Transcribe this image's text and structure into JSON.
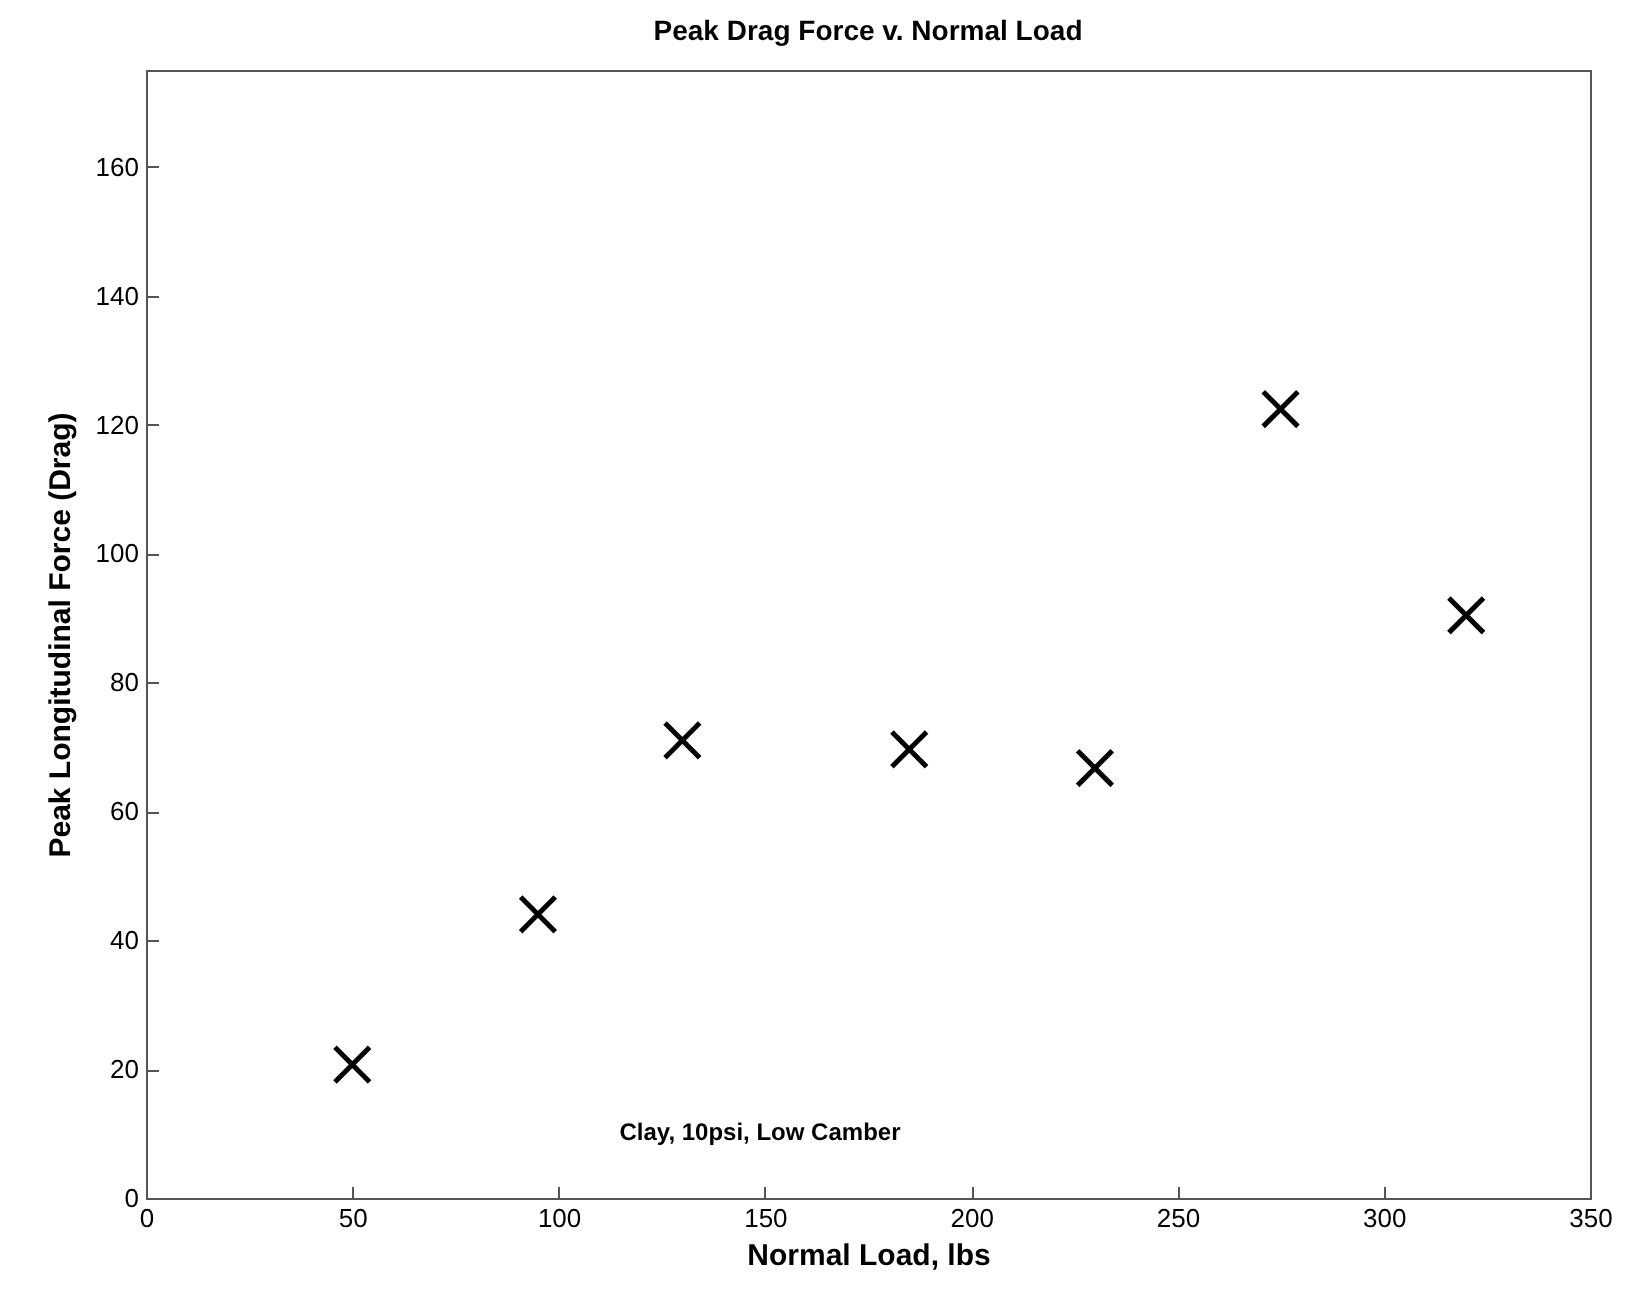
{
  "chart_data": {
    "type": "scatter",
    "title": "Peak Drag Force v. Normal Load",
    "xlabel": "Normal Load, lbs",
    "ylabel": "Peak Longitudinal Force (Drag)",
    "annotations": [
      "Clay, 10psi, Low Camber"
    ],
    "x": [
      50,
      95,
      130,
      185,
      230,
      275,
      320
    ],
    "series": [
      {
        "color": "#000000",
        "values": [
          20.7,
          44,
          71,
          69.6,
          66.7,
          122.4,
          90.4
        ]
      }
    ],
    "xlim": [
      0,
      350
    ],
    "xticks": [
      0,
      50,
      100,
      150,
      200,
      250,
      300,
      350
    ],
    "ylim": [
      0,
      175
    ],
    "yticks": [
      0,
      20,
      40,
      60,
      80,
      100,
      120,
      140,
      160
    ],
    "grid": false,
    "marker": "cross"
  }
}
